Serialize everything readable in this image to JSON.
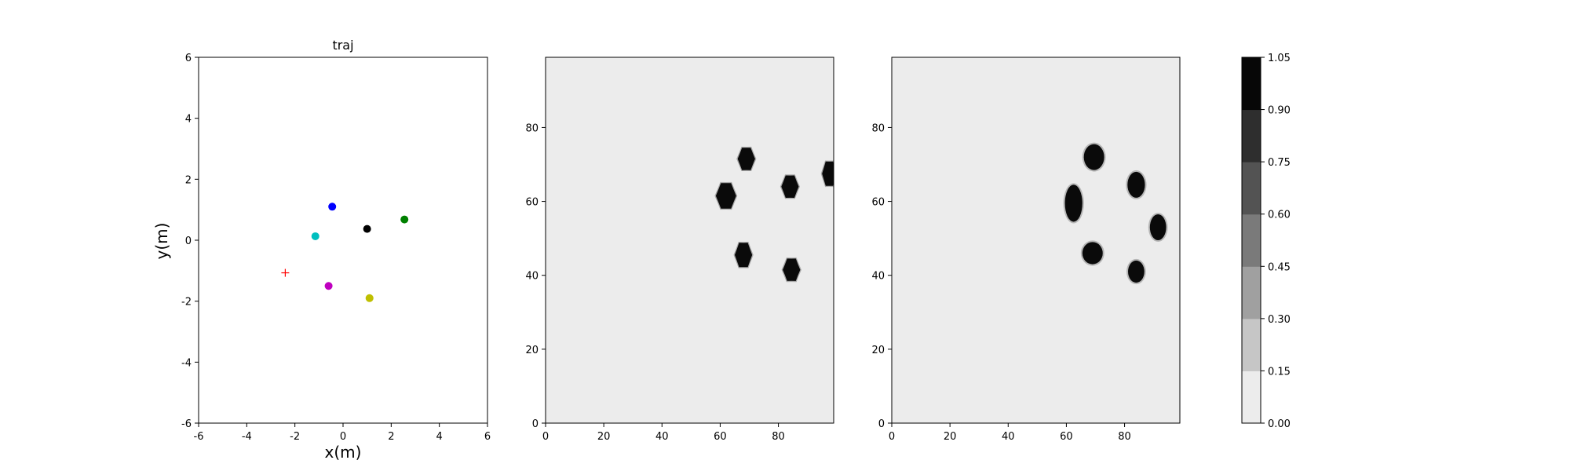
{
  "chart_data": [
    {
      "type": "scatter",
      "title": "traj",
      "xlabel": "x(m)",
      "ylabel": "y(m)",
      "xlim": [
        -6,
        6
      ],
      "ylim": [
        -6,
        6
      ],
      "xticks": [
        -6,
        -4,
        -2,
        0,
        2,
        4,
        6
      ],
      "yticks": [
        -6,
        -4,
        -2,
        0,
        2,
        4,
        6
      ],
      "grid": false,
      "points": [
        {
          "x": -0.45,
          "y": 1.1,
          "color": "#0000ff",
          "marker": "circle"
        },
        {
          "x": 1.0,
          "y": 0.37,
          "color": "#000000",
          "marker": "circle"
        },
        {
          "x": 2.55,
          "y": 0.68,
          "color": "#008000",
          "marker": "circle"
        },
        {
          "x": -1.15,
          "y": 0.13,
          "color": "#00bfbf",
          "marker": "circle"
        },
        {
          "x": -0.6,
          "y": -1.5,
          "color": "#bf00bf",
          "marker": "circle"
        },
        {
          "x": 1.1,
          "y": -1.9,
          "color": "#bfbf00",
          "marker": "circle"
        },
        {
          "x": -2.4,
          "y": -1.07,
          "color": "#ff0000",
          "marker": "plus"
        }
      ]
    },
    {
      "type": "heatmap",
      "title": "",
      "xlim": [
        0,
        99
      ],
      "ylim": [
        0,
        99
      ],
      "xticks": [
        0,
        20,
        40,
        60,
        80
      ],
      "yticks": [
        0,
        20,
        40,
        60,
        80
      ],
      "background_value": 0.05,
      "blobs": [
        {
          "cx": 62,
          "cy": 61.5,
          "rx": 3.5,
          "ry": 4.0,
          "shape": "octagon"
        },
        {
          "cx": 69,
          "cy": 71.5,
          "rx": 3.0,
          "ry": 3.5,
          "shape": "octagon"
        },
        {
          "cx": 84,
          "cy": 64,
          "rx": 3.0,
          "ry": 3.5,
          "shape": "octagon"
        },
        {
          "cx": 97.5,
          "cy": 67.5,
          "rx": 2.5,
          "ry": 3.8,
          "shape": "octagon"
        },
        {
          "cx": 68,
          "cy": 45.5,
          "rx": 3.0,
          "ry": 3.8,
          "shape": "octagon"
        },
        {
          "cx": 84.5,
          "cy": 41.5,
          "rx": 3.0,
          "ry": 3.5,
          "shape": "octagon"
        }
      ]
    },
    {
      "type": "heatmap",
      "title": "",
      "xlim": [
        0,
        99
      ],
      "ylim": [
        0,
        99
      ],
      "xticks": [
        0,
        20,
        40,
        60,
        80
      ],
      "yticks": [
        0,
        20,
        40,
        60,
        80
      ],
      "background_value": 0.05,
      "blobs": [
        {
          "cx": 62.5,
          "cy": 59.5,
          "rx": 3.0,
          "ry": 5.0,
          "shape": "ellipse"
        },
        {
          "cx": 69.5,
          "cy": 72,
          "rx": 3.5,
          "ry": 3.5,
          "shape": "ellipse"
        },
        {
          "cx": 84,
          "cy": 64.5,
          "rx": 3.0,
          "ry": 3.5,
          "shape": "ellipse"
        },
        {
          "cx": 91.5,
          "cy": 53,
          "rx": 2.8,
          "ry": 3.5,
          "shape": "ellipse"
        },
        {
          "cx": 69,
          "cy": 46,
          "rx": 3.5,
          "ry": 3.0,
          "shape": "ellipse"
        },
        {
          "cx": 84,
          "cy": 41,
          "rx": 2.8,
          "ry": 3.0,
          "shape": "ellipse"
        }
      ]
    },
    {
      "type": "colorbar",
      "levels": [
        "0.00",
        "0.15",
        "0.30",
        "0.45",
        "0.60",
        "0.75",
        "0.90",
        "1.05"
      ],
      "colors": [
        "#ececec",
        "#c6c6c6",
        "#a0a0a0",
        "#7a7a7a",
        "#535353",
        "#2e2e2e",
        "#070707"
      ]
    }
  ]
}
